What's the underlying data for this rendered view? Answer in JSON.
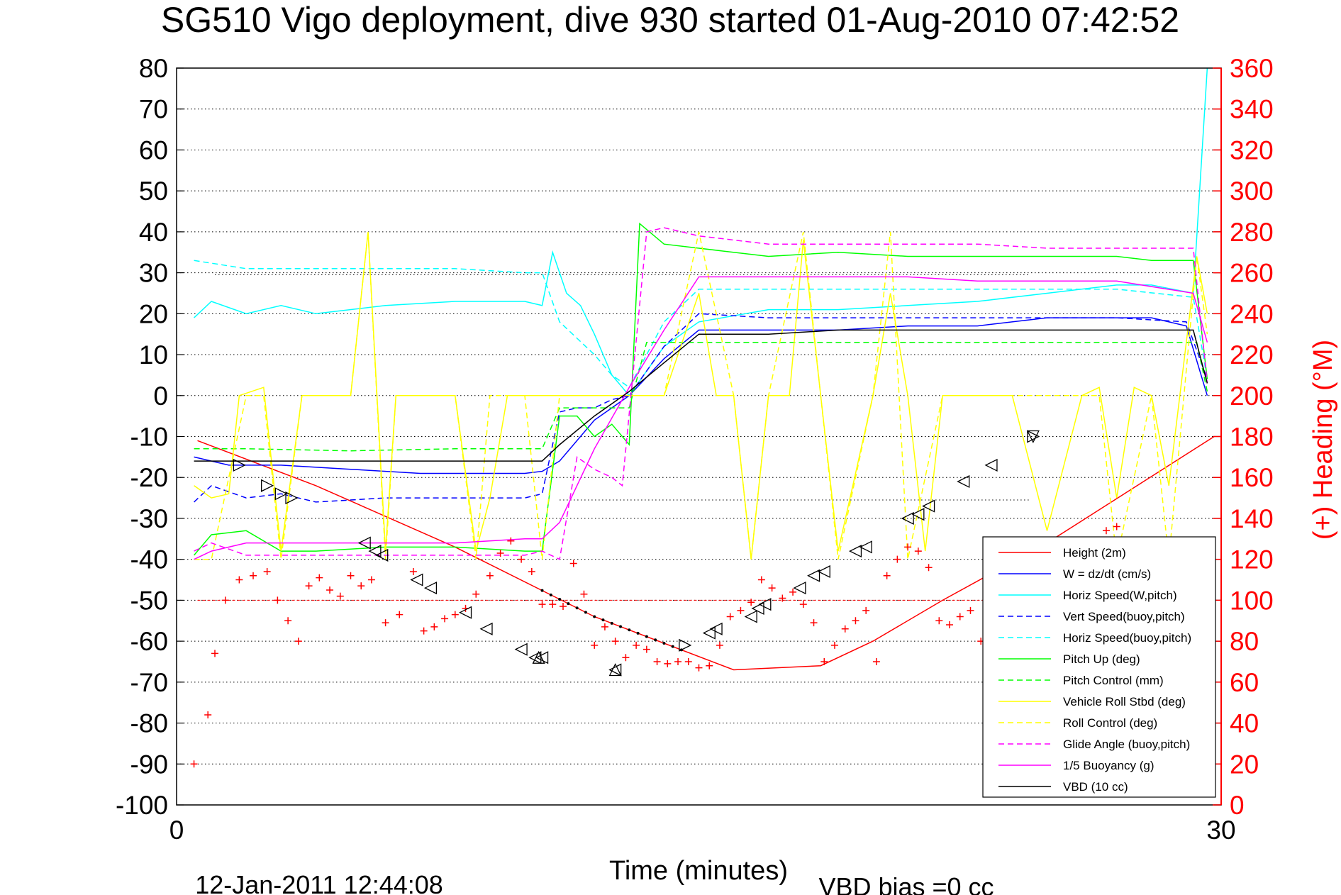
{
  "chart_data": {
    "type": "line",
    "title": "SG510 Vigo deployment, dive 930 started 01-Aug-2010 07:42:52",
    "xlabel": "Time (minutes)",
    "ylabel_right": "(+) Heading (°M)",
    "footer_left": "12-Jan-2011 12:44:08",
    "footer_right": "VBD bias =0 cc",
    "xlim": [
      0,
      30
    ],
    "ylim": [
      -100,
      80
    ],
    "y2lim": [
      0,
      360
    ],
    "x_ticks": [
      "0",
      "30"
    ],
    "y_ticks": [
      "80",
      "70",
      "60",
      "50",
      "40",
      "30",
      "20",
      "10",
      "0",
      "-10",
      "-20",
      "-30",
      "-40",
      "-50",
      "-60",
      "-70",
      "-80",
      "-90",
      "-100"
    ],
    "y2_ticks": [
      "360",
      "340",
      "320",
      "300",
      "280",
      "260",
      "240",
      "220",
      "200",
      "180",
      "160",
      "140",
      "120",
      "100",
      "80",
      "60",
      "40",
      "20",
      "0"
    ],
    "grid": "horizontal dotted",
    "legend_position": "bottom-right",
    "colors": {
      "red": "#ff0000",
      "blue": "#0000ff",
      "cyan": "#00ffff",
      "green": "#00ff00",
      "yellow": "#ffff00",
      "magenta": "#ff00ff",
      "black": "#000000"
    },
    "series": [
      {
        "name": "Height (2m)",
        "color": "#ff0000",
        "dash": "solid",
        "x": [
          0.6,
          4,
          8,
          12,
          16,
          18.5,
          20,
          22,
          25,
          29.8
        ],
        "y": [
          -11,
          -22,
          -37,
          -54,
          -67,
          -66,
          -60,
          -50,
          -36,
          -10
        ]
      },
      {
        "name": "W = dz/dt (cm/s)",
        "color": "#0000ff",
        "dash": "solid",
        "x": [
          0.5,
          1.5,
          3,
          5,
          7,
          9,
          10,
          10.5,
          11,
          12,
          12.5,
          13,
          14,
          15,
          17,
          19,
          21,
          23,
          25,
          27,
          28,
          29,
          29.6
        ],
        "y": [
          -15,
          -17,
          -17,
          -18,
          -19,
          -19,
          -19,
          -18.5,
          -16,
          -6,
          -3,
          0,
          9,
          16,
          16,
          16,
          17,
          17,
          19,
          19,
          19,
          17,
          0
        ]
      },
      {
        "name": "Horiz Speed(W,pitch)",
        "color": "#00ffff",
        "dash": "solid",
        "x": [
          0.5,
          1,
          2,
          3,
          4,
          6,
          8,
          10,
          10.5,
          10.8,
          11.2,
          11.6,
          12,
          12.5,
          13,
          14,
          15,
          17,
          19,
          21,
          23,
          25,
          27,
          28,
          29.2,
          29.6
        ],
        "y": [
          19,
          23,
          20,
          22,
          20,
          22,
          23,
          23,
          22,
          35,
          25,
          22,
          15,
          5,
          0,
          12,
          18,
          21,
          21,
          22,
          23,
          25,
          27,
          27,
          25,
          80
        ]
      },
      {
        "name": "Vert Speed(buoy,pitch)",
        "color": "#0000ff",
        "dash": "dash",
        "x": [
          0.5,
          1,
          2,
          3,
          4,
          6,
          8,
          10,
          10.5,
          11,
          11.5,
          12,
          12.5,
          13,
          14,
          15,
          17,
          19,
          21,
          23,
          25,
          27,
          29,
          29.6
        ],
        "y": [
          -26,
          -22,
          -25,
          -24,
          -26,
          -25,
          -25,
          -25,
          -24,
          -4,
          -3,
          -3,
          -1,
          0,
          12,
          20,
          19,
          19,
          19,
          19,
          19,
          19,
          18,
          4
        ]
      },
      {
        "name": "Horiz Speed(buoy,pitch)",
        "color": "#00ffff",
        "dash": "dash",
        "x": [
          0.5,
          2,
          5,
          8,
          10,
          10.5,
          11,
          11.5,
          12,
          12.5,
          13,
          14,
          15,
          17,
          19,
          21,
          23,
          25,
          27,
          29.2,
          29.6
        ],
        "y": [
          33,
          31,
          31,
          31,
          30,
          30,
          18,
          14,
          10,
          5,
          2,
          18,
          26,
          26,
          26,
          26,
          26,
          26,
          26,
          24,
          4
        ]
      },
      {
        "name": "Pitch Up (deg)",
        "color": "#00ff00",
        "dash": "solid",
        "x": [
          0.5,
          1,
          2,
          3,
          4,
          6,
          8,
          10,
          10.5,
          11,
          11.5,
          12,
          12.5,
          13,
          13.3,
          14,
          15,
          17,
          19,
          21,
          23,
          25,
          27,
          28,
          29.2,
          29.6
        ],
        "y": [
          -39,
          -34,
          -33,
          -38,
          -38,
          -37,
          -37,
          -38,
          -38,
          -5,
          -5,
          -10,
          -7,
          -12,
          42,
          37,
          36,
          34,
          35,
          34,
          34,
          34,
          34,
          33,
          33,
          4
        ]
      },
      {
        "name": "Pitch Control (mm)",
        "color": "#00ff00",
        "dash": "dash",
        "x": [
          0.5,
          2,
          5,
          8,
          10,
          10.5,
          11,
          12,
          13,
          13.5,
          15,
          20,
          25,
          29.3,
          29.6
        ],
        "y": [
          -13,
          -13,
          -13.5,
          -13,
          -13,
          -13,
          -3,
          -3,
          -3,
          13,
          13,
          13,
          13,
          13,
          1
        ]
      },
      {
        "name": "Vehicle Roll Stbd (deg)",
        "color": "#ffff00",
        "dash": "solid",
        "x": [
          0.5,
          1,
          1.5,
          1.8,
          2.5,
          3,
          3.6,
          4,
          4.5,
          5,
          5.5,
          6,
          6.3,
          7,
          8,
          8.6,
          9,
          9.5,
          10,
          10.5,
          11,
          12,
          13,
          14,
          15,
          15.5,
          16,
          16.5,
          17,
          17.6,
          18,
          18.5,
          19,
          20,
          20.5,
          21,
          21.5,
          22,
          22.5,
          23,
          24,
          25,
          26,
          26.5,
          27,
          27.5,
          28,
          28.5,
          29.3,
          29.6
        ],
        "y": [
          -22,
          -25,
          -24,
          0,
          2,
          -38,
          0,
          0,
          0,
          0,
          40,
          -38,
          0,
          0,
          0,
          -38,
          -25,
          0,
          0,
          0,
          0,
          0,
          0,
          0,
          25,
          0,
          0,
          -40,
          0,
          0,
          38,
          0,
          -38,
          0,
          25,
          0,
          -38,
          0,
          0,
          0,
          0,
          -33,
          0,
          2,
          -25,
          2,
          0,
          -22,
          34,
          20
        ]
      },
      {
        "name": "Roll Control (deg)",
        "color": "#ffff00",
        "dash": "dash",
        "x": [
          0.5,
          1,
          2,
          2.5,
          3,
          3.6,
          5,
          5.5,
          6,
          6.3,
          8,
          8.6,
          9,
          10,
          10.5,
          11,
          12,
          14,
          15,
          16,
          16.5,
          17,
          18,
          18.5,
          19,
          20,
          20.5,
          21,
          22,
          24,
          26,
          26.5,
          27,
          28,
          28.5,
          29.3,
          29.6
        ],
        "y": [
          -40,
          -40,
          0,
          0,
          -40,
          0,
          0,
          40,
          -40,
          0,
          0,
          -40,
          0,
          0,
          -40,
          0,
          0,
          0,
          40,
          0,
          -40,
          0,
          40,
          0,
          -40,
          0,
          40,
          -40,
          0,
          0,
          0,
          0,
          -40,
          0,
          -40,
          34,
          15
        ]
      },
      {
        "name": "Glide Angle (buoy,pitch)",
        "color": "#ff00ff",
        "dash": "dash",
        "x": [
          0.5,
          1,
          2,
          4,
          6,
          8,
          10,
          10.5,
          11,
          11.5,
          12,
          12.5,
          12.8,
          13.5,
          14,
          15,
          17,
          19,
          21,
          23,
          25,
          27,
          29.2,
          29.6
        ],
        "y": [
          -38,
          -36,
          -39,
          -39,
          -39,
          -39,
          -39,
          -38,
          -40,
          -15,
          -18,
          -20,
          -22,
          40,
          41,
          39,
          37,
          37,
          37,
          37,
          36,
          36,
          36,
          3
        ]
      },
      {
        "name": "1/5 Buoyancy (g)",
        "color": "#ff00ff",
        "dash": "solid",
        "x": [
          0.5,
          1,
          2,
          4,
          6,
          8,
          10,
          10.5,
          11,
          12,
          13,
          14,
          15,
          17,
          19,
          21,
          23,
          25,
          27,
          29.2,
          29.6
        ],
        "y": [
          -40,
          -38,
          -36,
          -36,
          -36,
          -36,
          -35,
          -35,
          -31,
          -13,
          2,
          16,
          29,
          29,
          29,
          29,
          28,
          28,
          28,
          25,
          13
        ]
      },
      {
        "name": "VBD (10 cc)",
        "color": "#000000",
        "dash": "solid",
        "x": [
          0.5,
          2,
          5,
          8,
          10,
          10.5,
          11,
          12,
          13,
          14,
          15,
          17,
          19,
          21,
          23,
          25,
          27,
          29.2,
          29.6
        ],
        "y": [
          -16,
          -16,
          -16,
          -16,
          -16,
          -16,
          -12,
          -5,
          1,
          8,
          15,
          15,
          16,
          16,
          16,
          16,
          16,
          16,
          3
        ]
      }
    ],
    "heading_points": {
      "name": "Heading",
      "color": "#ff0000",
      "marker": "+",
      "x": [
        0.5,
        0.9,
        1.1,
        1.4,
        1.8,
        2.2,
        2.6,
        2.9,
        3.2,
        3.5,
        3.8,
        4.1,
        4.4,
        4.7,
        5,
        5.3,
        5.6,
        6,
        6.4,
        6.8,
        7.1,
        7.4,
        7.7,
        8,
        8.3,
        8.6,
        9,
        9.3,
        9.6,
        9.9,
        10.2,
        10.5,
        10.8,
        11.1,
        11.4,
        11.7,
        12,
        12.3,
        12.6,
        12.9,
        13.2,
        13.5,
        13.8,
        14.1,
        14.4,
        14.7,
        15,
        15.3,
        15.6,
        15.9,
        16.2,
        16.5,
        16.8,
        17.1,
        17.4,
        17.7,
        18,
        18.3,
        18.6,
        18.9,
        19.2,
        19.5,
        19.8,
        20.1,
        20.4,
        20.7,
        21,
        21.3,
        21.6,
        21.9,
        22.2,
        22.5,
        22.8,
        23.1,
        23.4,
        23.7,
        24,
        24.3,
        24.6,
        24.9,
        25.2,
        25.5,
        25.8,
        26.1,
        26.4,
        26.7,
        27,
        27.3,
        27.6,
        27.9,
        28.2,
        28.5
      ],
      "y": [
        20,
        44,
        74,
        100,
        110,
        112,
        114,
        100,
        90,
        80,
        107,
        111,
        105,
        102,
        112,
        107,
        110,
        89,
        93,
        114,
        85,
        87,
        91,
        93,
        96,
        103,
        112,
        123,
        129,
        120,
        114,
        98,
        98,
        97,
        118,
        103,
        78,
        87,
        80,
        72,
        78,
        76,
        70,
        69,
        70,
        70,
        67,
        68,
        78,
        92,
        95,
        99,
        110,
        106,
        101,
        104,
        98,
        89,
        70,
        78,
        86,
        90,
        95,
        70,
        112,
        120,
        126,
        124,
        116,
        90,
        88,
        92,
        95,
        80,
        102,
        102,
        78,
        70,
        80,
        96,
        104,
        103,
        98,
        112,
        114,
        134,
        136,
        120,
        120,
        110,
        106,
        100
      ]
    },
    "heading_ref_lines_deg": [
      259,
      100,
      149
    ],
    "triangle_markers": [
      {
        "dir": "right",
        "x": 1.8,
        "y": -17
      },
      {
        "dir": "right",
        "x": 2.6,
        "y": -22
      },
      {
        "dir": "right",
        "x": 3,
        "y": -24
      },
      {
        "dir": "right",
        "x": 3.3,
        "y": -25
      },
      {
        "dir": "left",
        "x": 5.4,
        "y": -36
      },
      {
        "dir": "left",
        "x": 5.7,
        "y": -38
      },
      {
        "dir": "left",
        "x": 5.9,
        "y": -39
      },
      {
        "dir": "left",
        "x": 6.9,
        "y": -45
      },
      {
        "dir": "left",
        "x": 7.3,
        "y": -47
      },
      {
        "dir": "left",
        "x": 8.3,
        "y": -53
      },
      {
        "dir": "left",
        "x": 8.9,
        "y": -57
      },
      {
        "dir": "left",
        "x": 9.9,
        "y": -62
      },
      {
        "dir": "left",
        "x": 10.3,
        "y": -64
      },
      {
        "dir": "left",
        "x": 10.5,
        "y": -64
      },
      {
        "dir": "up",
        "x": 10.4,
        "y": -64
      },
      {
        "dir": "left",
        "x": 12.6,
        "y": -67
      },
      {
        "dir": "up",
        "x": 12.6,
        "y": -67
      },
      {
        "dir": "right",
        "x": 14.6,
        "y": -61
      },
      {
        "dir": "left",
        "x": 15.3,
        "y": -58
      },
      {
        "dir": "left",
        "x": 15.5,
        "y": -57
      },
      {
        "dir": "left",
        "x": 16.5,
        "y": -54
      },
      {
        "dir": "left",
        "x": 16.7,
        "y": -52
      },
      {
        "dir": "left",
        "x": 16.9,
        "y": -51
      },
      {
        "dir": "left",
        "x": 17.9,
        "y": -47
      },
      {
        "dir": "left",
        "x": 18.3,
        "y": -44
      },
      {
        "dir": "left",
        "x": 18.6,
        "y": -43
      },
      {
        "dir": "left",
        "x": 19.5,
        "y": -38
      },
      {
        "dir": "left",
        "x": 19.8,
        "y": -37
      },
      {
        "dir": "left",
        "x": 21,
        "y": -30
      },
      {
        "dir": "left",
        "x": 21.3,
        "y": -29
      },
      {
        "dir": "left",
        "x": 21.6,
        "y": -27
      },
      {
        "dir": "left",
        "x": 22.6,
        "y": -21
      },
      {
        "dir": "left",
        "x": 23.4,
        "y": -17
      },
      {
        "dir": "right",
        "x": 24.6,
        "y": -10
      },
      {
        "dir": "down",
        "x": 24.6,
        "y": -10
      }
    ]
  }
}
